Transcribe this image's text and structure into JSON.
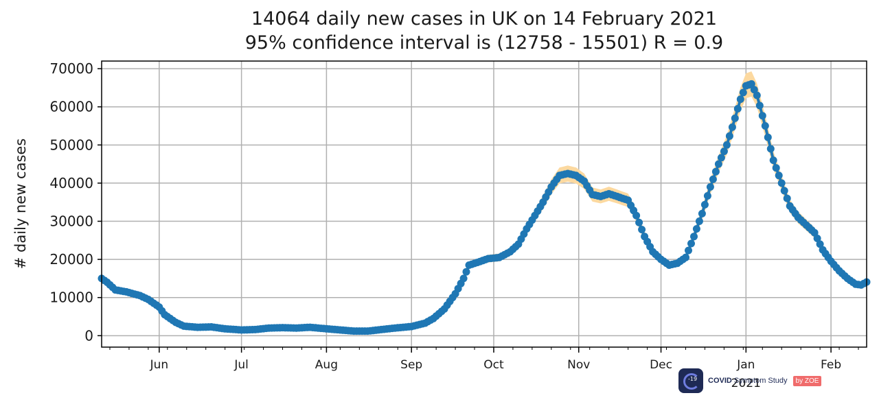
{
  "title": {
    "line1": "14064 daily new cases in UK on 14 February 2021",
    "line2": "95% confidence interval is (12758 - 15501) R = 0.9"
  },
  "logo": {
    "badge_text": "-19",
    "name": "COVID",
    "rest": "Symptom Study",
    "by": "by ZOE"
  },
  "colors": {
    "series": "#1f77b4",
    "ci_band": "#fcd9a0",
    "grid": "#b0b0b0",
    "axis": "#000000"
  },
  "chart_data": {
    "type": "line",
    "title": "14064 daily new cases in UK on 14 February 2021\n95% confidence interval is (12758 - 15501) R = 0.9",
    "xlabel": "",
    "ylabel": "# daily new cases",
    "xlim": [
      "2020-05-11",
      "2021-02-14"
    ],
    "ylim": [
      -3000,
      72000
    ],
    "yticks": [
      0,
      10000,
      20000,
      30000,
      40000,
      50000,
      60000,
      70000
    ],
    "ytick_labels": [
      "0",
      "10000",
      "20000",
      "30000",
      "40000",
      "50000",
      "60000",
      "70000"
    ],
    "xticks": [
      {
        "date": "2020-06-01",
        "label": "Jun"
      },
      {
        "date": "2020-07-01",
        "label": "Jul"
      },
      {
        "date": "2020-08-01",
        "label": "Aug"
      },
      {
        "date": "2020-09-01",
        "label": "Sep"
      },
      {
        "date": "2020-10-01",
        "label": "Oct"
      },
      {
        "date": "2020-11-01",
        "label": "Nov"
      },
      {
        "date": "2020-12-01",
        "label": "Dec"
      },
      {
        "date": "2021-01-01",
        "label": "Jan",
        "sublabel": "2021"
      },
      {
        "date": "2021-02-01",
        "label": "Feb"
      }
    ],
    "grid": true,
    "legend": "none",
    "series": [
      {
        "points": [
          [
            "2020-05-11",
            15000
          ],
          [
            "2020-05-13",
            14000
          ],
          [
            "2020-05-16",
            12000
          ],
          [
            "2020-05-20",
            11500
          ],
          [
            "2020-05-25",
            10500
          ],
          [
            "2020-05-28",
            9500
          ],
          [
            "2020-06-01",
            7500
          ],
          [
            "2020-06-03",
            5500
          ],
          [
            "2020-06-07",
            3500
          ],
          [
            "2020-06-10",
            2500
          ],
          [
            "2020-06-15",
            2200
          ],
          [
            "2020-06-20",
            2300
          ],
          [
            "2020-06-25",
            1800
          ],
          [
            "2020-07-01",
            1500
          ],
          [
            "2020-07-06",
            1600
          ],
          [
            "2020-07-11",
            2000
          ],
          [
            "2020-07-16",
            2100
          ],
          [
            "2020-07-21",
            2000
          ],
          [
            "2020-07-26",
            2200
          ],
          [
            "2020-08-01",
            1800
          ],
          [
            "2020-08-06",
            1500
          ],
          [
            "2020-08-11",
            1200
          ],
          [
            "2020-08-16",
            1200
          ],
          [
            "2020-08-21",
            1600
          ],
          [
            "2020-08-26",
            2000
          ],
          [
            "2020-09-01",
            2400
          ],
          [
            "2020-09-06",
            3300
          ],
          [
            "2020-09-09",
            4500
          ],
          [
            "2020-09-13",
            7000
          ],
          [
            "2020-09-17",
            11000
          ],
          [
            "2020-09-20",
            15000
          ],
          [
            "2020-09-22",
            18500
          ],
          [
            "2020-09-25",
            19200
          ],
          [
            "2020-09-29",
            20200
          ],
          [
            "2020-10-03",
            20500
          ],
          [
            "2020-10-07",
            22000
          ],
          [
            "2020-10-10",
            24000
          ],
          [
            "2020-10-13",
            28000
          ],
          [
            "2020-10-16",
            31500
          ],
          [
            "2020-10-19",
            35000
          ],
          [
            "2020-10-22",
            39000
          ],
          [
            "2020-10-25",
            42000
          ],
          [
            "2020-10-28",
            42500
          ],
          [
            "2020-10-31",
            42000
          ],
          [
            "2020-11-03",
            40500
          ],
          [
            "2020-11-06",
            37000
          ],
          [
            "2020-11-09",
            36500
          ],
          [
            "2020-11-12",
            37200
          ],
          [
            "2020-11-15",
            36500
          ],
          [
            "2020-11-19",
            35500
          ],
          [
            "2020-11-22",
            31500
          ],
          [
            "2020-11-25",
            26000
          ],
          [
            "2020-11-28",
            22000
          ],
          [
            "2020-12-01",
            20000
          ],
          [
            "2020-12-04",
            18500
          ],
          [
            "2020-12-07",
            19000
          ],
          [
            "2020-12-10",
            20500
          ],
          [
            "2020-12-13",
            26000
          ],
          [
            "2020-12-16",
            32000
          ],
          [
            "2020-12-19",
            39000
          ],
          [
            "2020-12-22",
            45000
          ],
          [
            "2020-12-25",
            50000
          ],
          [
            "2020-12-28",
            57000
          ],
          [
            "2020-12-30",
            62000
          ],
          [
            "2021-01-01",
            65500
          ],
          [
            "2021-01-03",
            66000
          ],
          [
            "2021-01-05",
            63000
          ],
          [
            "2021-01-08",
            55000
          ],
          [
            "2021-01-11",
            46000
          ],
          [
            "2021-01-14",
            40000
          ],
          [
            "2021-01-17",
            34000
          ],
          [
            "2021-01-20",
            31000
          ],
          [
            "2021-01-23",
            29000
          ],
          [
            "2021-01-26",
            27000
          ],
          [
            "2021-01-29",
            22500
          ],
          [
            "2021-02-01",
            19500
          ],
          [
            "2021-02-04",
            17000
          ],
          [
            "2021-02-07",
            15000
          ],
          [
            "2021-02-10",
            13500
          ],
          [
            "2021-02-12",
            13300
          ],
          [
            "2021-02-14",
            14064
          ]
        ]
      }
    ]
  }
}
